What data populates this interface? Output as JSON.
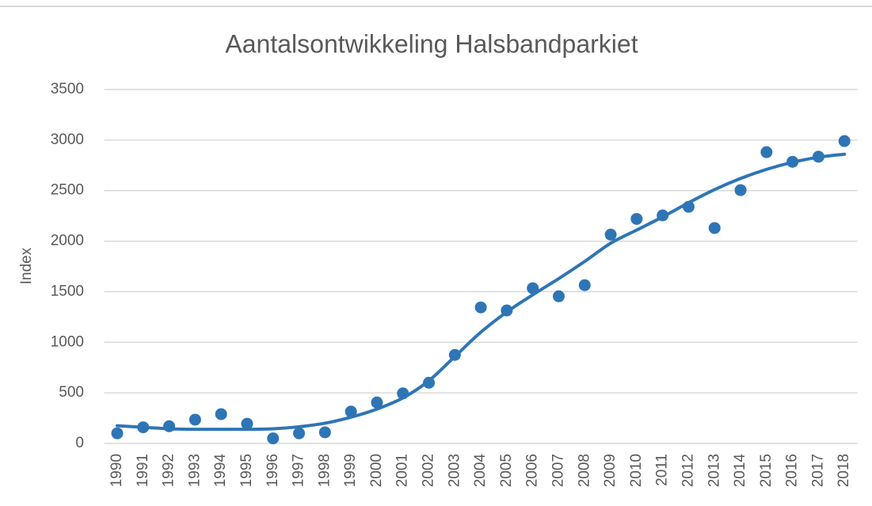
{
  "chart_data": {
    "type": "line",
    "title": "Aantalsontwikkeling Halsbandparkiet",
    "y_label": "Index",
    "categories": [
      "1990",
      "1991",
      "1992",
      "1993",
      "1994",
      "1995",
      "1996",
      "1997",
      "1998",
      "1999",
      "2000",
      "2001",
      "2002",
      "2003",
      "2004",
      "2005",
      "2006",
      "2007",
      "2008",
      "2009",
      "2010",
      "2011",
      "2012",
      "2013",
      "2014",
      "2015",
      "2016",
      "2017",
      "2018"
    ],
    "series": [
      {
        "style": "markers",
        "color": "#2e75b6",
        "values": [
          100,
          160,
          170,
          235,
          290,
          195,
          50,
          100,
          110,
          315,
          405,
          495,
          600,
          875,
          1345,
          1315,
          1535,
          1455,
          1565,
          2065,
          2220,
          2255,
          2340,
          2130,
          2505,
          2880,
          2785,
          2835,
          2990
        ]
      },
      {
        "style": "smooth-line",
        "color": "#2e75b6",
        "values": [
          175,
          160,
          145,
          140,
          140,
          140,
          145,
          165,
          200,
          260,
          340,
          450,
          620,
          860,
          1100,
          1300,
          1470,
          1630,
          1800,
          1980,
          2110,
          2240,
          2380,
          2510,
          2620,
          2710,
          2780,
          2830,
          2860
        ]
      }
    ],
    "ylim": [
      0,
      3500
    ],
    "yticks": [
      0,
      500,
      1000,
      1500,
      2000,
      2500,
      3000,
      3500
    ],
    "grid": true
  }
}
